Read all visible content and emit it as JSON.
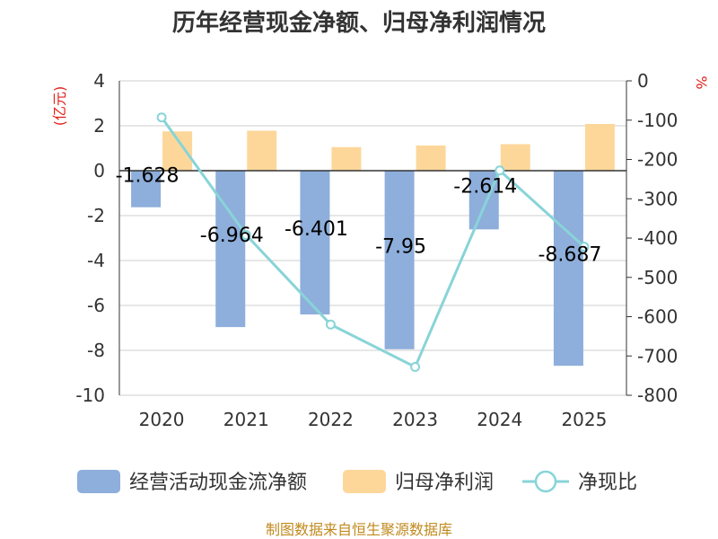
{
  "chart_data": {
    "type": "bar",
    "title": "历年经营现金净额、归母净利润情况",
    "categories": [
      "2020",
      "2021",
      "2022",
      "2023",
      "2024",
      "2025"
    ],
    "left_axis": {
      "unit": "(亿元)",
      "ylim": [
        -10,
        4
      ],
      "ticks": [
        4,
        2,
        0,
        -2,
        -4,
        -6,
        -8,
        -10
      ]
    },
    "right_axis": {
      "unit": "%",
      "ylim": [
        -800,
        0
      ],
      "ticks": [
        0,
        -100,
        -200,
        -300,
        -400,
        -500,
        -600,
        -700,
        -800
      ]
    },
    "series": [
      {
        "name": "经营活动现金流净额",
        "kind": "bar",
        "axis": "left",
        "color": "#8eaedb",
        "values": [
          -1.628,
          -6.964,
          -6.401,
          -7.95,
          -2.614,
          -8.687
        ],
        "labels": [
          "-1.628",
          "-6.964",
          "-6.401",
          "-7.95",
          "-2.614",
          "-8.687"
        ]
      },
      {
        "name": "归母净利润",
        "kind": "bar",
        "axis": "left",
        "color": "#fdd79a",
        "values": [
          1.75,
          1.78,
          1.05,
          1.12,
          1.18,
          2.08
        ]
      },
      {
        "name": "净现比",
        "kind": "line",
        "axis": "right",
        "color": "#88d4d8",
        "values": [
          -93,
          -392,
          -620,
          -728,
          -228,
          -422
        ]
      }
    ],
    "source": "制图数据来自恒生聚源数据库"
  }
}
